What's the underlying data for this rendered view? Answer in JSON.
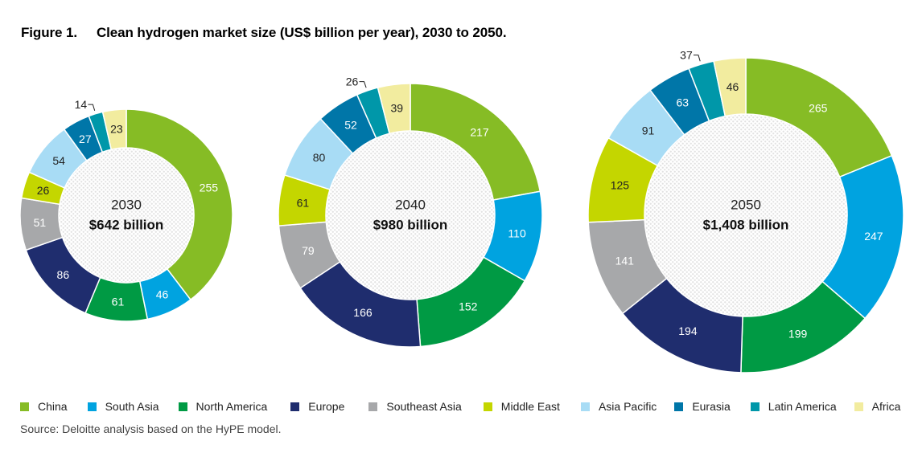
{
  "title": {
    "figure": "Figure 1.",
    "text": "Clean hydrogen market size (US$ billion per year), 2030 to 2050."
  },
  "source": "Source: Deloitte analysis based on the HyPE model.",
  "colors": {
    "China": "#86bc25",
    "South Asia": "#00a3e0",
    "North America": "#009a44",
    "Europe": "#1f2d6e",
    "Southeast Asia": "#a7a8aa",
    "Middle East": "#c4d600",
    "Asia Pacific": "#a8dcf5",
    "Eurasia": "#0076a8",
    "Latin America": "#0097a9",
    "Africa": "#f2ec9f"
  },
  "chart_data": [
    {
      "type": "pie",
      "year": "2030",
      "total_label": "$642 billion",
      "categories": [
        "China",
        "South Asia",
        "North America",
        "Europe",
        "Southeast Asia",
        "Middle East",
        "Asia Pacific",
        "Eurasia",
        "Latin America",
        "Africa"
      ],
      "values": [
        255,
        46,
        61,
        86,
        51,
        26,
        54,
        27,
        14,
        23
      ]
    },
    {
      "type": "pie",
      "year": "2040",
      "total_label": "$980 billion",
      "categories": [
        "China",
        "South Asia",
        "North America",
        "Europe",
        "Southeast Asia",
        "Middle East",
        "Asia Pacific",
        "Eurasia",
        "Latin America",
        "Africa"
      ],
      "values": [
        217,
        110,
        152,
        166,
        79,
        61,
        80,
        52,
        26,
        39
      ]
    },
    {
      "type": "pie",
      "year": "2050",
      "total_label": "$1,408 billion",
      "categories": [
        "China",
        "South Asia",
        "North America",
        "Europe",
        "Southeast Asia",
        "Middle East",
        "Asia Pacific",
        "Eurasia",
        "Latin America",
        "Africa"
      ],
      "values": [
        265,
        247,
        199,
        194,
        141,
        125,
        91,
        63,
        37,
        46
      ]
    }
  ],
  "legend": [
    "China",
    "South Asia",
    "North America",
    "Europe",
    "Southeast Asia",
    "Middle East",
    "Asia Pacific",
    "Eurasia",
    "Latin America",
    "Africa"
  ]
}
